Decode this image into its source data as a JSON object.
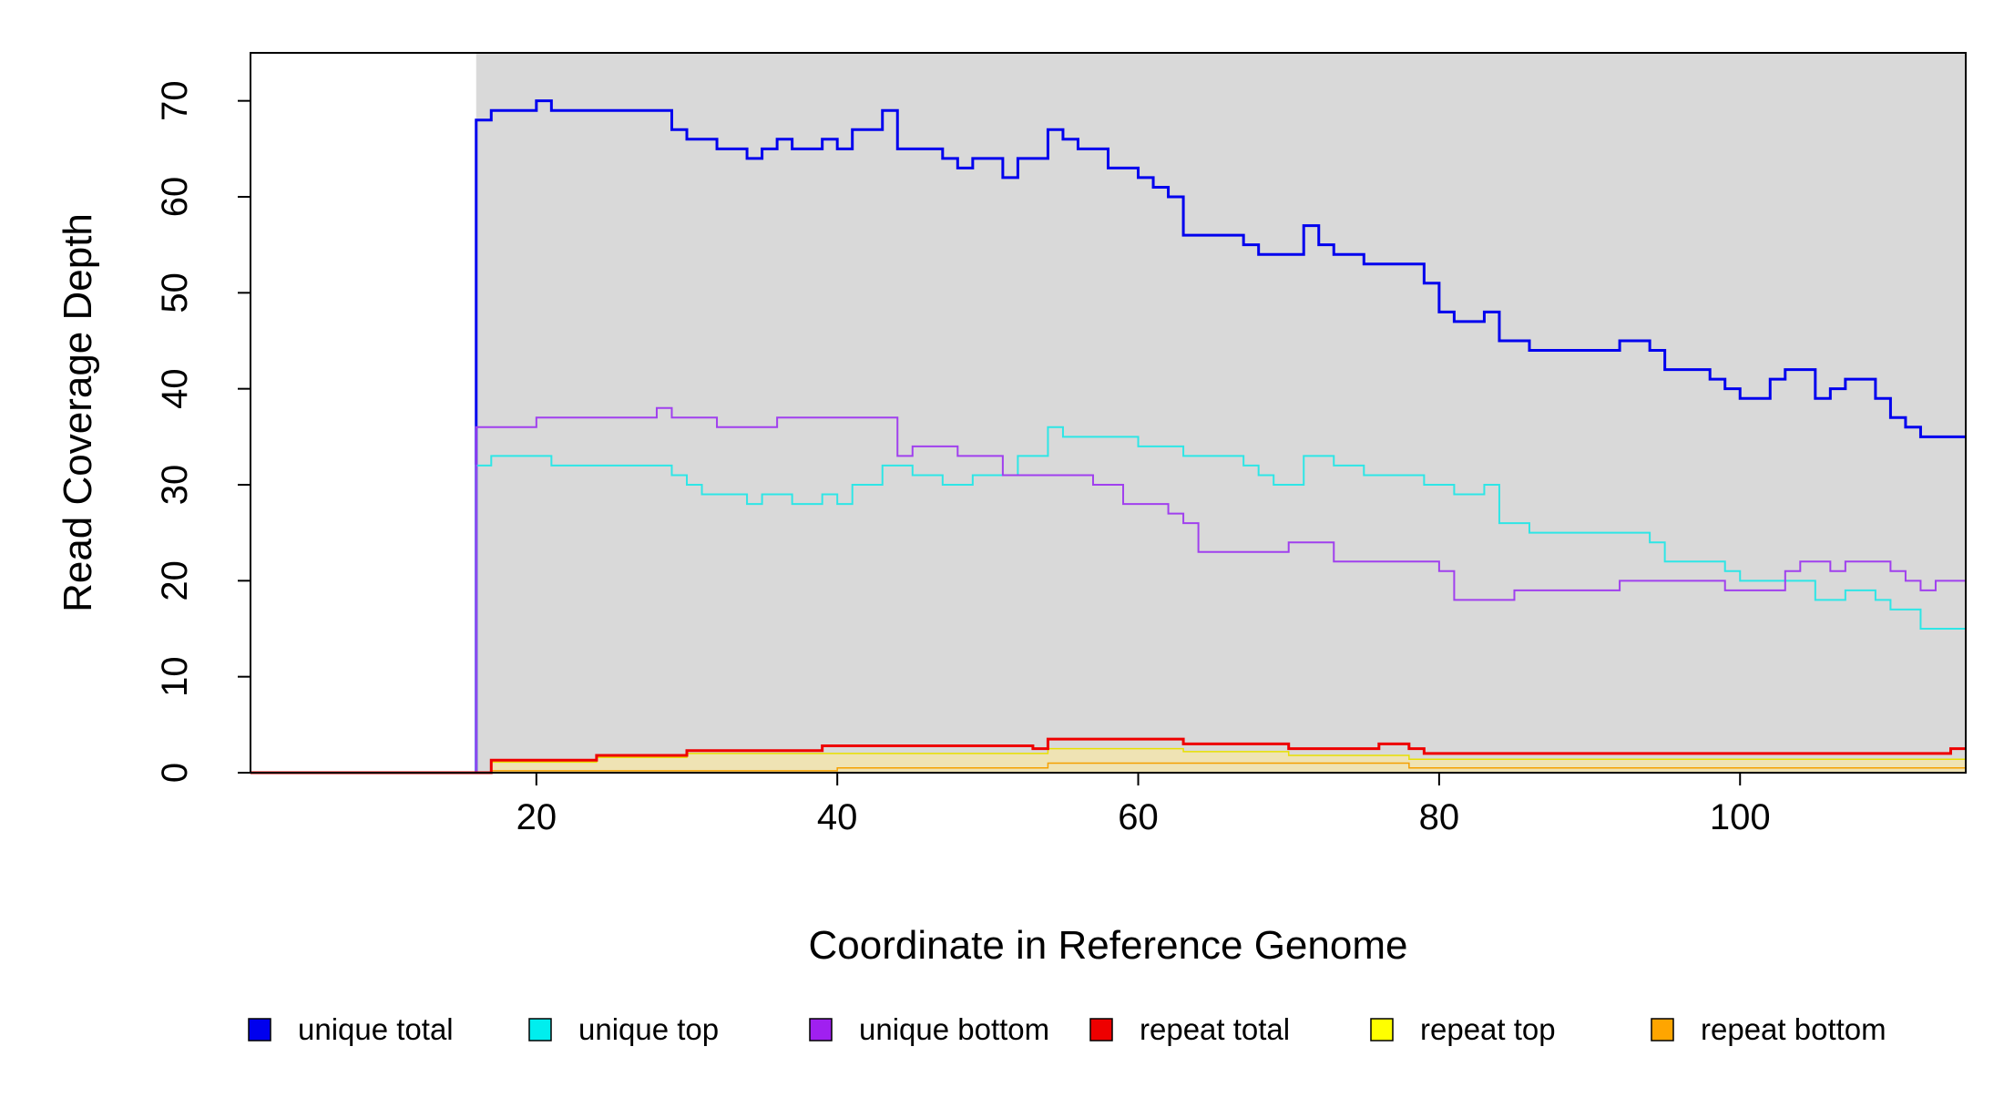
{
  "chart_data": {
    "type": "line",
    "step": true,
    "xlabel": "Coordinate in Reference Genome",
    "ylabel": "Read Coverage Depth",
    "xlim": [
      1,
      115
    ],
    "ylim": [
      0,
      75
    ],
    "x_ticks": [
      20,
      40,
      60,
      80,
      100
    ],
    "y_ticks": [
      0,
      10,
      20,
      30,
      40,
      50,
      60,
      70
    ],
    "x_tick_labels": [
      "20",
      "40",
      "60",
      "80",
      "100"
    ],
    "y_tick_labels": [
      "0",
      "10",
      "20",
      "30",
      "40",
      "50",
      "60",
      "70"
    ],
    "shaded_region": {
      "from": 16,
      "to": 115,
      "color": "#d9d9d9"
    },
    "legend_position": "bottom",
    "series": [
      {
        "name": "unique total",
        "color": "#0000ee",
        "width": 3,
        "x": [
          1,
          16,
          17,
          18,
          19,
          20,
          21,
          22,
          23,
          24,
          25,
          26,
          27,
          28,
          29,
          30,
          31,
          32,
          33,
          34,
          35,
          36,
          37,
          38,
          39,
          40,
          41,
          42,
          43,
          44,
          45,
          46,
          47,
          48,
          49,
          50,
          51,
          52,
          53,
          54,
          55,
          56,
          57,
          58,
          59,
          60,
          61,
          62,
          63,
          64,
          65,
          66,
          67,
          68,
          69,
          70,
          71,
          72,
          73,
          74,
          75,
          76,
          77,
          78,
          79,
          80,
          81,
          82,
          83,
          84,
          85,
          86,
          87,
          88,
          89,
          90,
          91,
          92,
          93,
          94,
          95,
          96,
          97,
          98,
          99,
          100,
          101,
          102,
          103,
          104,
          105,
          106,
          107,
          108,
          109,
          110,
          111,
          112,
          113,
          114,
          115
        ],
        "y": [
          0,
          68,
          69,
          69,
          69,
          70,
          69,
          69,
          69,
          69,
          69,
          69,
          69,
          69,
          67,
          66,
          66,
          65,
          65,
          64,
          65,
          66,
          65,
          65,
          66,
          65,
          67,
          67,
          69,
          65,
          65,
          65,
          64,
          63,
          64,
          64,
          62,
          64,
          64,
          67,
          66,
          65,
          65,
          63,
          63,
          62,
          61,
          60,
          56,
          56,
          56,
          56,
          55,
          54,
          54,
          54,
          57,
          55,
          54,
          54,
          53,
          53,
          53,
          53,
          51,
          48,
          47,
          47,
          48,
          45,
          45,
          44,
          44,
          44,
          44,
          44,
          44,
          45,
          45,
          44,
          42,
          42,
          42,
          41,
          40,
          39,
          39,
          41,
          42,
          42,
          39,
          40,
          41,
          41,
          39,
          37,
          36,
          35,
          35,
          35,
          35
        ]
      },
      {
        "name": "unique top",
        "color": "#2ee6e6",
        "width": 2,
        "x": [
          1,
          16,
          17,
          18,
          19,
          20,
          21,
          22,
          23,
          24,
          25,
          26,
          27,
          28,
          29,
          30,
          31,
          32,
          33,
          34,
          35,
          36,
          37,
          38,
          39,
          40,
          41,
          42,
          43,
          44,
          45,
          46,
          47,
          48,
          49,
          50,
          51,
          52,
          53,
          54,
          55,
          56,
          57,
          58,
          59,
          60,
          61,
          62,
          63,
          64,
          65,
          66,
          67,
          68,
          69,
          70,
          71,
          72,
          73,
          74,
          75,
          76,
          77,
          78,
          79,
          80,
          81,
          82,
          83,
          84,
          85,
          86,
          87,
          88,
          89,
          90,
          91,
          92,
          93,
          94,
          95,
          96,
          97,
          98,
          99,
          100,
          101,
          102,
          103,
          104,
          105,
          106,
          107,
          108,
          109,
          110,
          111,
          112,
          113,
          114,
          115
        ],
        "y": [
          0,
          32,
          33,
          33,
          33,
          33,
          32,
          32,
          32,
          32,
          32,
          32,
          32,
          32,
          31,
          30,
          29,
          29,
          29,
          28,
          29,
          29,
          28,
          28,
          29,
          28,
          30,
          30,
          32,
          32,
          31,
          31,
          30,
          30,
          31,
          31,
          31,
          33,
          33,
          36,
          35,
          35,
          35,
          35,
          35,
          34,
          34,
          34,
          33,
          33,
          33,
          33,
          32,
          31,
          30,
          30,
          33,
          33,
          32,
          32,
          31,
          31,
          31,
          31,
          30,
          30,
          29,
          29,
          30,
          26,
          26,
          25,
          25,
          25,
          25,
          25,
          25,
          25,
          25,
          24,
          22,
          22,
          22,
          22,
          21,
          20,
          20,
          20,
          20,
          20,
          18,
          18,
          19,
          19,
          18,
          17,
          17,
          15,
          15,
          15,
          15
        ]
      },
      {
        "name": "unique bottom",
        "color": "#a040ee",
        "width": 2,
        "x": [
          1,
          16,
          17,
          18,
          19,
          20,
          21,
          22,
          23,
          24,
          25,
          26,
          27,
          28,
          29,
          30,
          31,
          32,
          33,
          34,
          35,
          36,
          37,
          38,
          39,
          40,
          41,
          42,
          43,
          44,
          45,
          46,
          47,
          48,
          49,
          50,
          51,
          52,
          53,
          54,
          55,
          56,
          57,
          58,
          59,
          60,
          61,
          62,
          63,
          64,
          65,
          66,
          67,
          68,
          69,
          70,
          71,
          72,
          73,
          74,
          75,
          76,
          77,
          78,
          79,
          80,
          81,
          82,
          83,
          84,
          85,
          86,
          87,
          88,
          89,
          90,
          91,
          92,
          93,
          94,
          95,
          96,
          97,
          98,
          99,
          100,
          101,
          102,
          103,
          104,
          105,
          106,
          107,
          108,
          109,
          110,
          111,
          112,
          113,
          114,
          115
        ],
        "y": [
          0,
          36,
          36,
          36,
          36,
          37,
          37,
          37,
          37,
          37,
          37,
          37,
          37,
          38,
          37,
          37,
          37,
          36,
          36,
          36,
          36,
          37,
          37,
          37,
          37,
          37,
          37,
          37,
          37,
          33,
          34,
          34,
          34,
          33,
          33,
          33,
          31,
          31,
          31,
          31,
          31,
          31,
          30,
          30,
          28,
          28,
          28,
          27,
          26,
          23,
          23,
          23,
          23,
          23,
          23,
          24,
          24,
          24,
          22,
          22,
          22,
          22,
          22,
          22,
          22,
          21,
          18,
          18,
          18,
          18,
          19,
          19,
          19,
          19,
          19,
          19,
          19,
          20,
          20,
          20,
          20,
          20,
          20,
          20,
          19,
          19,
          19,
          19,
          21,
          22,
          22,
          21,
          22,
          22,
          22,
          21,
          20,
          19,
          20,
          20,
          20
        ]
      },
      {
        "name": "repeat top",
        "color": "#e8e000",
        "width": 1.5,
        "fill": "#efe3b4",
        "x": [
          1,
          16,
          17,
          18,
          19,
          20,
          21,
          22,
          23,
          24,
          25,
          26,
          27,
          28,
          29,
          30,
          31,
          32,
          33,
          34,
          35,
          36,
          37,
          38,
          39,
          40,
          41,
          42,
          43,
          44,
          45,
          46,
          47,
          48,
          49,
          50,
          51,
          52,
          53,
          54,
          55,
          56,
          57,
          58,
          59,
          60,
          61,
          62,
          63,
          64,
          65,
          66,
          67,
          68,
          69,
          70,
          71,
          72,
          73,
          74,
          75,
          76,
          77,
          78,
          79,
          80,
          81,
          82,
          83,
          84,
          85,
          86,
          87,
          88,
          89,
          90,
          91,
          92,
          93,
          94,
          95,
          96,
          97,
          98,
          99,
          100,
          101,
          102,
          103,
          104,
          105,
          106,
          107,
          108,
          109,
          110,
          111,
          112,
          113,
          114,
          115
        ],
        "y": [
          0,
          0,
          1.1,
          1.1,
          1.1,
          1.1,
          1.1,
          1.1,
          1.1,
          1.6,
          1.6,
          1.6,
          1.6,
          1.6,
          1.6,
          2.0,
          2.0,
          2.0,
          2.0,
          2.0,
          2.0,
          2.0,
          2.0,
          2.0,
          2.0,
          2.0,
          2.0,
          2.0,
          2.0,
          2.0,
          2.0,
          2.0,
          2.0,
          2.0,
          2.0,
          2.0,
          2.0,
          2.0,
          2.0,
          2.5,
          2.5,
          2.5,
          2.5,
          2.5,
          2.5,
          2.5,
          2.5,
          2.5,
          2.2,
          2.2,
          2.2,
          2.2,
          2.2,
          2.2,
          2.2,
          1.8,
          1.8,
          1.8,
          1.8,
          1.8,
          1.8,
          1.8,
          1.8,
          1.4,
          1.4,
          1.4,
          1.4,
          1.4,
          1.4,
          1.4,
          1.4,
          1.4,
          1.4,
          1.4,
          1.4,
          1.4,
          1.4,
          1.4,
          1.4,
          1.4,
          1.4,
          1.4,
          1.4,
          1.4,
          1.4,
          1.4,
          1.4,
          1.4,
          1.4,
          1.4,
          1.4,
          1.4,
          1.4,
          1.4,
          1.4,
          1.4,
          1.4,
          1.4,
          1.4,
          1.4,
          1.4
        ]
      },
      {
        "name": "repeat bottom",
        "color": "#f5a000",
        "width": 1.5,
        "x": [
          1,
          16,
          17,
          18,
          19,
          20,
          21,
          22,
          23,
          24,
          25,
          26,
          27,
          28,
          29,
          30,
          31,
          32,
          33,
          34,
          35,
          36,
          37,
          38,
          39,
          40,
          41,
          42,
          43,
          44,
          45,
          46,
          47,
          48,
          49,
          50,
          51,
          52,
          53,
          54,
          55,
          56,
          57,
          58,
          59,
          60,
          61,
          62,
          63,
          64,
          65,
          66,
          67,
          68,
          69,
          70,
          71,
          72,
          73,
          74,
          75,
          76,
          77,
          78,
          79,
          80,
          81,
          82,
          83,
          84,
          85,
          86,
          87,
          88,
          89,
          90,
          91,
          92,
          93,
          94,
          95,
          96,
          97,
          98,
          99,
          100,
          101,
          102,
          103,
          104,
          105,
          106,
          107,
          108,
          109,
          110,
          111,
          112,
          113,
          114,
          115
        ],
        "y": [
          0,
          0,
          0.2,
          0.2,
          0.2,
          0.2,
          0.2,
          0.2,
          0.2,
          0.2,
          0.2,
          0.2,
          0.2,
          0.2,
          0.2,
          0.2,
          0.2,
          0.2,
          0.2,
          0.2,
          0.2,
          0.2,
          0.2,
          0.2,
          0.2,
          0.5,
          0.5,
          0.5,
          0.5,
          0.5,
          0.5,
          0.5,
          0.5,
          0.5,
          0.5,
          0.5,
          0.5,
          0.5,
          0.5,
          1.0,
          1.0,
          1.0,
          1.0,
          1.0,
          1.0,
          1.0,
          1.0,
          1.0,
          1.0,
          1.0,
          1.0,
          1.0,
          1.0,
          1.0,
          1.0,
          1.0,
          1.0,
          1.0,
          1.0,
          1.0,
          1.0,
          1.0,
          1.0,
          0.5,
          0.5,
          0.5,
          0.5,
          0.5,
          0.5,
          0.5,
          0.5,
          0.5,
          0.5,
          0.5,
          0.5,
          0.5,
          0.5,
          0.5,
          0.5,
          0.5,
          0.5,
          0.5,
          0.5,
          0.5,
          0.5,
          0.5,
          0.5,
          0.5,
          0.5,
          0.5,
          0.5,
          0.5,
          0.5,
          0.5,
          0.5,
          0.5,
          0.5,
          0.5,
          0.5,
          0.5,
          0.5
        ]
      },
      {
        "name": "repeat total",
        "color": "#ee0000",
        "width": 3,
        "x": [
          1,
          16,
          17,
          18,
          19,
          20,
          21,
          22,
          23,
          24,
          25,
          26,
          27,
          28,
          29,
          30,
          31,
          32,
          33,
          34,
          35,
          36,
          37,
          38,
          39,
          40,
          41,
          42,
          43,
          44,
          45,
          46,
          47,
          48,
          49,
          50,
          51,
          52,
          53,
          54,
          55,
          56,
          57,
          58,
          59,
          60,
          61,
          62,
          63,
          64,
          65,
          66,
          67,
          68,
          69,
          70,
          71,
          72,
          73,
          74,
          75,
          76,
          77,
          78,
          79,
          80,
          81,
          82,
          83,
          84,
          85,
          86,
          87,
          88,
          89,
          90,
          91,
          92,
          93,
          94,
          95,
          96,
          97,
          98,
          99,
          100,
          101,
          102,
          103,
          104,
          105,
          106,
          107,
          108,
          109,
          110,
          111,
          112,
          113,
          114,
          115
        ],
        "y": [
          0,
          0,
          1.3,
          1.3,
          1.3,
          1.3,
          1.3,
          1.3,
          1.3,
          1.8,
          1.8,
          1.8,
          1.8,
          1.8,
          1.8,
          2.3,
          2.3,
          2.3,
          2.3,
          2.3,
          2.3,
          2.3,
          2.3,
          2.3,
          2.8,
          2.8,
          2.8,
          2.8,
          2.8,
          2.8,
          2.8,
          2.8,
          2.8,
          2.8,
          2.8,
          2.8,
          2.8,
          2.8,
          2.5,
          3.5,
          3.5,
          3.5,
          3.5,
          3.5,
          3.5,
          3.5,
          3.5,
          3.5,
          3.0,
          3.0,
          3.0,
          3.0,
          3.0,
          3.0,
          3.0,
          2.5,
          2.5,
          2.5,
          2.5,
          2.5,
          2.5,
          3.0,
          3.0,
          2.5,
          2.0,
          2.0,
          2.0,
          2.0,
          2.0,
          2.0,
          2.0,
          2.0,
          2.0,
          2.0,
          2.0,
          2.0,
          2.0,
          2.0,
          2.0,
          2.0,
          2.0,
          2.0,
          2.0,
          2.0,
          2.0,
          2.0,
          2.0,
          2.0,
          2.0,
          2.0,
          2.0,
          2.0,
          2.0,
          2.0,
          2.0,
          2.0,
          2.0,
          2.0,
          2.0,
          2.5,
          2.5
        ]
      }
    ],
    "legend": [
      {
        "label": "unique total",
        "color": "#0000ee"
      },
      {
        "label": "unique top",
        "color": "#00eeee"
      },
      {
        "label": "unique bottom",
        "color": "#a020f0"
      },
      {
        "label": "repeat total",
        "color": "#ee0000"
      },
      {
        "label": "repeat top",
        "color": "#ffff00"
      },
      {
        "label": "repeat bottom",
        "color": "#ffa500"
      }
    ]
  }
}
